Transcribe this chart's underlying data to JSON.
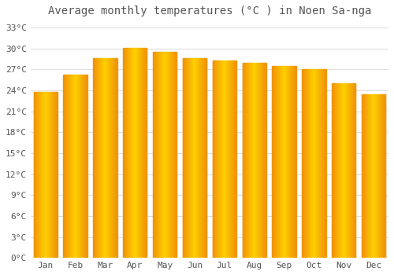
{
  "title": "Average monthly temperatures (°C ) in Noen Sa-nga",
  "months": [
    "Jan",
    "Feb",
    "Mar",
    "Apr",
    "May",
    "Jun",
    "Jul",
    "Aug",
    "Sep",
    "Oct",
    "Nov",
    "Dec"
  ],
  "values": [
    23.8,
    26.3,
    28.6,
    30.1,
    29.5,
    28.6,
    28.3,
    28.0,
    27.5,
    27.0,
    25.0,
    23.5
  ],
  "bar_color_center": "#FFD000",
  "bar_color_edge": "#F0920A",
  "ylim": [
    0,
    34
  ],
  "yticks": [
    0,
    3,
    6,
    9,
    12,
    15,
    18,
    21,
    24,
    27,
    30,
    33
  ],
  "ytick_labels": [
    "0°C",
    "3°C",
    "6°C",
    "9°C",
    "12°C",
    "15°C",
    "18°C",
    "21°C",
    "24°C",
    "27°C",
    "30°C",
    "33°C"
  ],
  "grid_color": "#dddddd",
  "background_color": "#ffffff",
  "title_fontsize": 10,
  "tick_fontsize": 8,
  "font_color": "#555555",
  "bar_width": 0.8,
  "gap_color": "#ffffff"
}
